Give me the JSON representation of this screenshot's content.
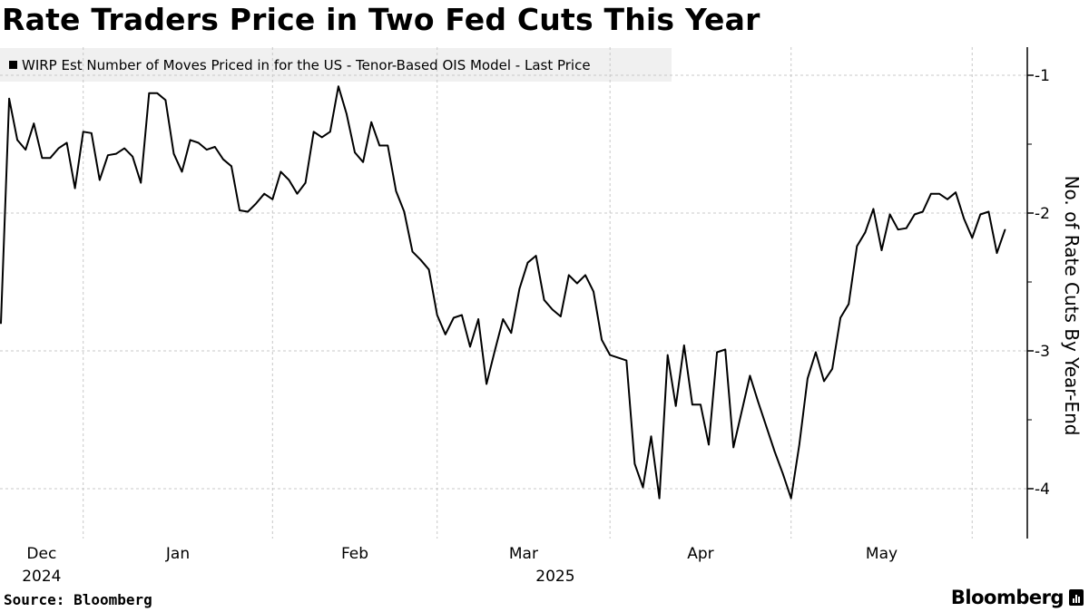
{
  "title": "Rate Traders Price in Two Fed Cuts This Year",
  "source": "Source: Bloomberg",
  "brand": "Bloomberg",
  "colors": {
    "line": "#000000",
    "legend_bg": "#f0f0f0",
    "grid": "#c8c8c8"
  },
  "chart_data": {
    "type": "line",
    "title": "Rate Traders Price in Two Fed Cuts This Year",
    "ylabel": "No. of Rate Cuts By Year-End",
    "xlabel": "",
    "ylim": [
      -4.35,
      -0.8
    ],
    "yticks": [
      -1,
      -2,
      -3,
      -4
    ],
    "ytick_labels": [
      "-1",
      "-2",
      "-3",
      "-4"
    ],
    "y_axis_side": "right",
    "grid": true,
    "legend_placement": "top-left",
    "x_tick_labels": [
      {
        "month": "Dec",
        "year": "2024"
      },
      {
        "month": "Jan",
        "year": ""
      },
      {
        "month": "Feb",
        "year": ""
      },
      {
        "month": "Mar",
        "year": "2025"
      },
      {
        "month": "Apr",
        "year": ""
      },
      {
        "month": "May",
        "year": ""
      }
    ],
    "series": [
      {
        "name": "WIRP Est Number of Moves Priced in for the US - Tenor-Based OIS Model - Last Price",
        "x": [
          "2024-12-18",
          "2024-12-19",
          "2024-12-20",
          "2024-12-23",
          "2024-12-24",
          "2024-12-25",
          "2024-12-26",
          "2024-12-27",
          "2024-12-30",
          "2024-12-31",
          "2025-01-01",
          "2025-01-02",
          "2025-01-03",
          "2025-01-06",
          "2025-01-07",
          "2025-01-08",
          "2025-01-09",
          "2025-01-10",
          "2025-01-13",
          "2025-01-14",
          "2025-01-15",
          "2025-01-16",
          "2025-01-17",
          "2025-01-20",
          "2025-01-21",
          "2025-01-22",
          "2025-01-23",
          "2025-01-24",
          "2025-01-27",
          "2025-01-28",
          "2025-01-29",
          "2025-01-30",
          "2025-01-31",
          "2025-02-03",
          "2025-02-04",
          "2025-02-05",
          "2025-02-06",
          "2025-02-07",
          "2025-02-10",
          "2025-02-11",
          "2025-02-12",
          "2025-02-13",
          "2025-02-14",
          "2025-02-17",
          "2025-02-18",
          "2025-02-19",
          "2025-02-20",
          "2025-02-21",
          "2025-02-24",
          "2025-02-25",
          "2025-02-26",
          "2025-02-27",
          "2025-02-28",
          "2025-03-03",
          "2025-03-04",
          "2025-03-05",
          "2025-03-06",
          "2025-03-07",
          "2025-03-10",
          "2025-03-11",
          "2025-03-12",
          "2025-03-13",
          "2025-03-14",
          "2025-03-17",
          "2025-03-18",
          "2025-03-19",
          "2025-03-20",
          "2025-03-21",
          "2025-03-24",
          "2025-03-25",
          "2025-03-26",
          "2025-03-27",
          "2025-03-28",
          "2025-03-31",
          "2025-04-01",
          "2025-04-02",
          "2025-04-03",
          "2025-04-04",
          "2025-04-07",
          "2025-04-08",
          "2025-04-09",
          "2025-04-10",
          "2025-04-11",
          "2025-04-14",
          "2025-04-15",
          "2025-04-16",
          "2025-04-17",
          "2025-04-18",
          "2025-04-21",
          "2025-04-22",
          "2025-04-23",
          "2025-04-24",
          "2025-04-25",
          "2025-04-28",
          "2025-04-29",
          "2025-04-30",
          "2025-05-01",
          "2025-05-02",
          "2025-05-05",
          "2025-05-06",
          "2025-05-07",
          "2025-05-08",
          "2025-05-09",
          "2025-05-12",
          "2025-05-13",
          "2025-05-14",
          "2025-05-15",
          "2025-05-16",
          "2025-05-19",
          "2025-05-20",
          "2025-05-21",
          "2025-05-22",
          "2025-05-23",
          "2025-05-26",
          "2025-05-27",
          "2025-05-28",
          "2025-05-29",
          "2025-05-30",
          "2025-06-02",
          "2025-06-03",
          "2025-06-04",
          "2025-06-05",
          "2025-06-06"
        ],
        "values": [
          -2.8,
          -1.17,
          -1.47,
          -1.54,
          -1.35,
          -1.6,
          -1.6,
          -1.53,
          -1.49,
          -1.82,
          -1.41,
          -1.42,
          -1.76,
          -1.58,
          -1.57,
          -1.53,
          -1.59,
          -1.78,
          -1.13,
          -1.13,
          -1.18,
          -1.57,
          -1.7,
          -1.47,
          -1.49,
          -1.54,
          -1.52,
          -1.61,
          -1.66,
          -1.98,
          -1.99,
          -1.93,
          -1.86,
          -1.9,
          -1.7,
          -1.76,
          -1.86,
          -1.78,
          -1.41,
          -1.45,
          -1.41,
          -1.08,
          -1.28,
          -1.56,
          -1.63,
          -1.34,
          -1.51,
          -1.51,
          -1.84,
          -1.99,
          -2.28,
          -2.34,
          -2.41,
          -2.74,
          -2.88,
          -2.76,
          -2.74,
          -2.97,
          -2.77,
          -3.24,
          -3.0,
          -2.77,
          -2.87,
          -2.55,
          -2.36,
          -2.31,
          -2.63,
          -2.7,
          -2.75,
          -2.45,
          -2.51,
          -2.45,
          -2.57,
          -2.92,
          -3.03,
          -3.05,
          -3.07,
          -3.82,
          -3.99,
          -3.62,
          -4.07,
          -3.03,
          -3.4,
          -2.96,
          -3.39,
          -3.39,
          -3.68,
          -3.01,
          -2.99,
          -3.7,
          -3.44,
          -3.18,
          -3.37,
          -3.55,
          -3.73,
          -3.89,
          -4.07,
          -3.68,
          -3.2,
          -3.01,
          -3.22,
          -3.13,
          -2.76,
          -2.66,
          -2.24,
          -2.14,
          -1.97,
          -2.27,
          -2.01,
          -2.12,
          -2.11,
          -2.01,
          -1.99,
          -1.86,
          -1.86,
          -1.9,
          -1.85,
          -2.04,
          -2.18,
          -2.01,
          -1.99,
          -2.29,
          -2.12
        ]
      }
    ]
  }
}
